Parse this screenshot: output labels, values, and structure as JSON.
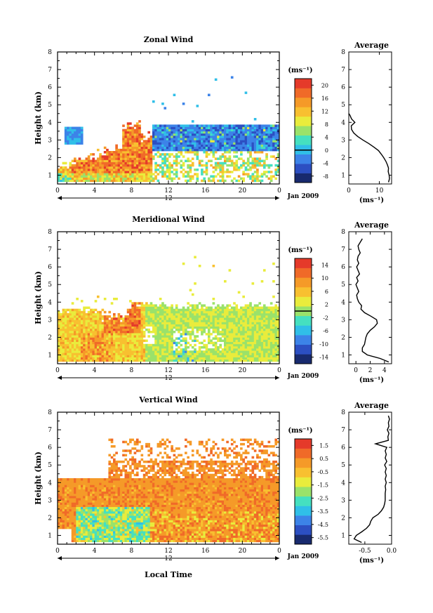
{
  "x_axis": {
    "ticks": [
      "0",
      "4",
      "8",
      "12",
      "16",
      "20",
      "0"
    ],
    "day_label": "12",
    "date_label": "Jan 2009",
    "local_time_label": "Local Time"
  },
  "unit_label": "(ms⁻¹)",
  "y_label": "Height (km)",
  "avg_title": "Average",
  "chart_data": [
    {
      "id": "zonal",
      "type": "heatmap",
      "title": "Zonal Wind",
      "ylabel": "Height (km)",
      "xlabel": "",
      "xlim": [
        0,
        24
      ],
      "ylim": [
        0.5,
        8
      ],
      "y_ticks": [
        1,
        2,
        3,
        4,
        5,
        6,
        7,
        8
      ],
      "colorbar": {
        "unit": "(ms⁻¹)",
        "range": [
          -10,
          22
        ],
        "tick_values": [
          -8,
          -4,
          0,
          4,
          8,
          12,
          16,
          20
        ],
        "tick_labels": [
          "-8",
          "-4",
          "0",
          "4",
          "8",
          "12",
          "16",
          "20"
        ],
        "zero_line": 0,
        "colors": [
          "#182a6e",
          "#2c4fc2",
          "#3c83e8",
          "#30bfe8",
          "#45e0c0",
          "#9ae26a",
          "#e9ec3c",
          "#f8c030",
          "#f59a28",
          "#f06a28",
          "#e53a2a"
        ]
      },
      "average": {
        "title": "Average",
        "xlim": [
          0,
          14
        ],
        "x_ticks": [
          0,
          10
        ],
        "x_tick_labels": [
          "0",
          "10"
        ],
        "xlabel": "(ms⁻¹)",
        "height": [
          0.6,
          0.8,
          1.0,
          1.2,
          1.4,
          1.6,
          1.8,
          2.0,
          2.2,
          2.4,
          2.6,
          2.8,
          3.0,
          3.2,
          3.4,
          3.6,
          3.8,
          4.0,
          4.2,
          4.4,
          4.5
        ],
        "value": [
          13.0,
          13.3,
          13.2,
          12.9,
          13.0,
          12.6,
          12.1,
          11.4,
          10.6,
          9.7,
          8.2,
          6.5,
          4.6,
          2.9,
          1.6,
          0.9,
          0.8,
          2.0,
          0.9,
          0.4,
          0.0
        ]
      }
    },
    {
      "id": "meridional",
      "type": "heatmap",
      "title": "Meridional Wind",
      "ylabel": "Height (km)",
      "xlabel": "",
      "xlim": [
        0,
        24
      ],
      "ylim": [
        0.5,
        8
      ],
      "y_ticks": [
        1,
        2,
        3,
        4,
        5,
        6,
        7,
        8
      ],
      "colorbar": {
        "unit": "(ms⁻¹)",
        "range": [
          -16,
          16
        ],
        "tick_values": [
          -14,
          -10,
          -6,
          -2,
          2,
          6,
          10,
          14
        ],
        "tick_labels": [
          "-14",
          "-10",
          "-6",
          "-2",
          "2",
          "6",
          "10",
          "14"
        ],
        "zero_line": 0,
        "colors": [
          "#182a6e",
          "#2c4fc2",
          "#3c83e8",
          "#30bfe8",
          "#45e0c0",
          "#9ae26a",
          "#e9ec3c",
          "#f8c030",
          "#f59a28",
          "#f06a28",
          "#e53a2a"
        ]
      },
      "average": {
        "title": "Average",
        "xlim": [
          -1,
          5
        ],
        "x_ticks": [
          0,
          2,
          4
        ],
        "x_tick_labels": [
          "0",
          "2",
          "4"
        ],
        "xlabel": "(ms⁻¹)",
        "height": [
          0.6,
          0.8,
          1.0,
          1.2,
          1.4,
          1.6,
          1.8,
          2.0,
          2.2,
          2.4,
          2.6,
          2.8,
          3.0,
          3.2,
          3.4,
          3.6,
          3.8,
          4.0,
          4.2,
          4.4,
          4.6,
          4.8,
          5.0,
          5.2,
          5.4,
          5.6,
          5.8,
          6.0,
          6.2,
          6.4,
          6.6,
          6.8,
          7.0,
          7.2,
          7.4,
          7.6
        ],
        "value": [
          4.6,
          3.4,
          1.6,
          0.9,
          0.9,
          1.2,
          1.3,
          1.4,
          1.6,
          2.0,
          2.6,
          3.0,
          2.9,
          2.1,
          1.2,
          0.7,
          0.8,
          0.4,
          0.2,
          0.1,
          0.4,
          0.2,
          0.0,
          0.3,
          0.1,
          0.5,
          0.3,
          0.1,
          0.4,
          0.2,
          0.3,
          0.6,
          0.4,
          0.3,
          0.6,
          0.9
        ]
      }
    },
    {
      "id": "vertical",
      "type": "heatmap",
      "title": "Vertical Wind",
      "ylabel": "Height (km)",
      "xlabel": "Local Time",
      "xlim": [
        0,
        24
      ],
      "ylim": [
        0.5,
        8
      ],
      "y_ticks": [
        1,
        2,
        3,
        4,
        5,
        6,
        7,
        8
      ],
      "colorbar": {
        "unit": "(ms⁻¹)",
        "range": [
          -6,
          2
        ],
        "tick_values": [
          -5.5,
          -4.5,
          -3.5,
          -2.5,
          -1.5,
          -0.5,
          0.5,
          1.5
        ],
        "tick_labels": [
          "-5.5",
          "-4.5",
          "-3.5",
          "-2.5",
          "-1.5",
          "-0.5",
          "0.5",
          "1.5"
        ],
        "zero_line": null,
        "colors": [
          "#182a6e",
          "#2c4fc2",
          "#3c83e8",
          "#30bfe8",
          "#45e0c0",
          "#9ae26a",
          "#e9ec3c",
          "#f8c030",
          "#f59a28",
          "#f06a28",
          "#e53a2a"
        ]
      },
      "average": {
        "title": "Average",
        "xlim": [
          -0.8,
          0.0
        ],
        "x_ticks": [
          -0.5,
          0.0
        ],
        "x_tick_labels": [
          "-0.5",
          "0.0"
        ],
        "xlabel": "(ms⁻¹)",
        "height": [
          0.6,
          0.8,
          1.0,
          1.2,
          1.4,
          1.6,
          1.8,
          2.0,
          2.2,
          2.4,
          2.6,
          2.8,
          3.0,
          3.2,
          3.4,
          3.6,
          3.8,
          4.0,
          4.2,
          4.4,
          4.6,
          4.8,
          5.0,
          5.2,
          5.4,
          5.6,
          5.8,
          6.0,
          6.2,
          6.4,
          6.6,
          6.8,
          7.0,
          7.2,
          7.4,
          7.6,
          7.8
        ],
        "value": [
          -0.56,
          -0.7,
          -0.66,
          -0.56,
          -0.47,
          -0.41,
          -0.39,
          -0.35,
          -0.25,
          -0.19,
          -0.15,
          -0.13,
          -0.12,
          -0.12,
          -0.12,
          -0.11,
          -0.12,
          -0.1,
          -0.12,
          -0.1,
          -0.12,
          -0.1,
          -0.13,
          -0.09,
          -0.12,
          -0.1,
          -0.12,
          -0.09,
          -0.3,
          -0.06,
          -0.07,
          -0.05,
          -0.08,
          -0.05,
          -0.06,
          -0.04,
          -0.06
        ]
      }
    }
  ]
}
